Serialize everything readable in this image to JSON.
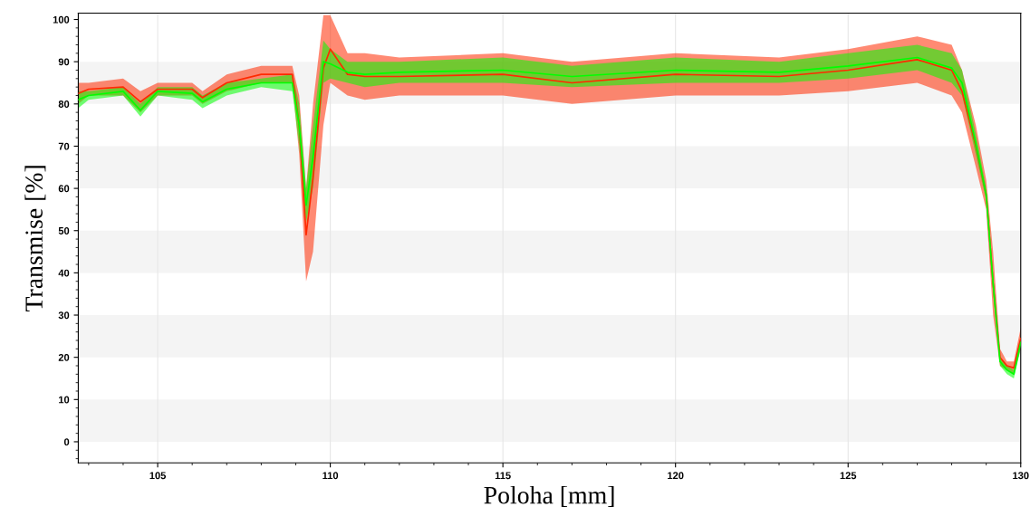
{
  "chart_data": {
    "type": "line",
    "xlabel": "Poloha [mm]",
    "ylabel": "Transmise [%]",
    "xlim": [
      102.7,
      130
    ],
    "ylim": [
      -5,
      101.5
    ],
    "xticks": [
      105,
      110,
      115,
      120,
      125,
      130
    ],
    "yticks": [
      0,
      10,
      20,
      30,
      40,
      50,
      60,
      70,
      80,
      90,
      100
    ],
    "grid": "x",
    "marker": "none",
    "line_style": "solid",
    "series": [
      {
        "color": "#ff2a00",
        "x": [
          102.7,
          103,
          104,
          104.5,
          105,
          106,
          106.3,
          107,
          108,
          108.9,
          109.1,
          109.3,
          109.5,
          109.8,
          110,
          110.5,
          111,
          112,
          115,
          117,
          120,
          123,
          125,
          127,
          128,
          128.3,
          128.7,
          129,
          129.2,
          129.4,
          129.6,
          129.8,
          130
        ],
        "values": [
          82.5,
          83.5,
          84,
          80.5,
          83.5,
          83.5,
          81.5,
          85,
          87,
          87,
          75,
          49,
          62.5,
          88.5,
          93,
          87,
          86.5,
          86.5,
          87,
          85,
          87,
          86.5,
          88,
          90.5,
          88,
          83,
          70,
          58.5,
          37.5,
          20,
          18,
          17.5,
          24.5
        ],
        "lower": [
          80,
          82,
          82,
          78,
          82,
          82,
          80,
          83,
          85,
          85,
          68,
          38,
          45,
          75,
          85,
          82,
          81,
          82,
          82,
          80,
          82,
          82,
          83,
          85,
          82,
          78,
          65,
          55,
          30,
          18,
          17,
          16,
          22
        ],
        "upper": [
          85,
          85,
          86,
          83,
          85,
          85,
          83,
          87,
          89,
          89,
          82,
          60,
          80,
          101,
          101,
          92,
          92,
          91,
          92,
          90,
          92,
          91,
          93,
          96,
          94,
          88,
          75,
          62,
          45,
          22,
          19,
          19,
          27
        ]
      },
      {
        "color": "#00ff00",
        "x": [
          102.7,
          103,
          104,
          104.5,
          105,
          106,
          106.3,
          107,
          108,
          108.9,
          109.1,
          109.3,
          109.5,
          109.8,
          110,
          110.5,
          111,
          112,
          115,
          117,
          120,
          123,
          125,
          127,
          128,
          128.3,
          128.7,
          129,
          129.2,
          129.4,
          129.6,
          129.8,
          130
        ],
        "values": [
          81,
          82,
          83,
          78.5,
          83,
          82.5,
          80.5,
          83.5,
          85,
          85,
          75,
          56,
          67.5,
          90,
          89.5,
          87.5,
          87,
          87.5,
          88,
          86.5,
          88,
          87.5,
          89,
          91,
          88.5,
          85,
          70.5,
          58.5,
          37.5,
          19,
          17,
          16,
          23.5
        ],
        "lower": [
          79,
          81,
          82,
          77,
          82,
          81,
          79,
          82,
          84,
          83,
          70,
          52,
          60,
          85,
          86,
          85,
          84,
          85,
          85,
          84,
          85,
          85,
          86,
          88,
          85,
          82,
          68,
          57,
          35,
          18,
          16,
          15,
          22
        ],
        "upper": [
          83,
          83,
          84,
          80,
          84,
          84,
          82,
          85,
          86,
          87,
          80,
          60,
          75,
          95,
          93,
          90,
          90,
          90,
          91,
          89,
          91,
          90,
          92,
          94,
          92,
          88,
          73,
          60,
          40,
          20,
          18,
          17,
          25
        ]
      }
    ]
  }
}
